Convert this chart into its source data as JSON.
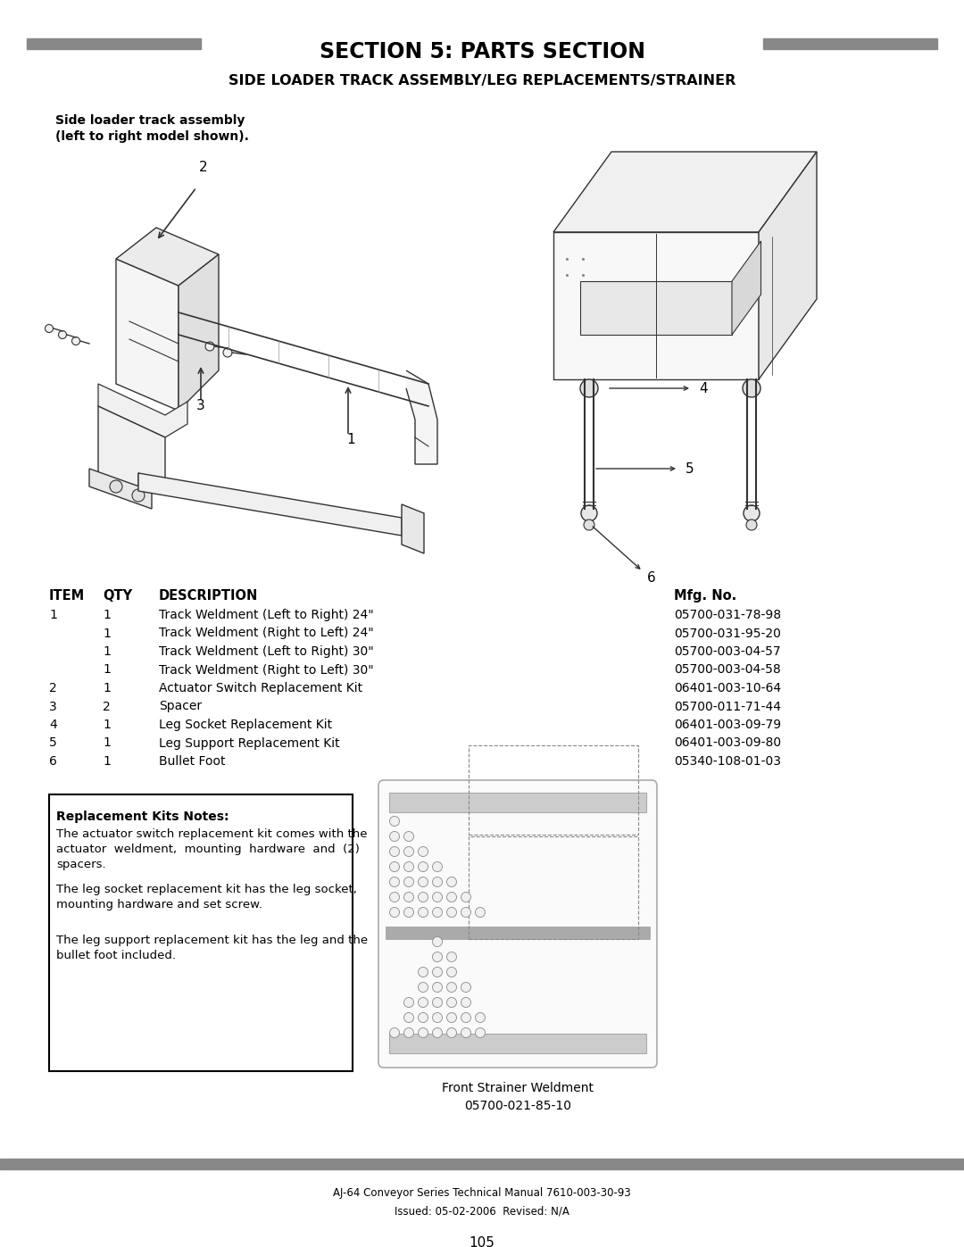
{
  "page_title": "SECTION 5: PARTS SECTION",
  "page_subtitle": "SIDE LOADER TRACK ASSEMBLY/LEG REPLACEMENTS/STRAINER",
  "diagram_caption_line1": "Side loader track assembly",
  "diagram_caption_line2": "(left to right model shown).",
  "table_headers": [
    "ITEM",
    "QTY",
    "DESCRIPTION",
    "Mfg. No."
  ],
  "table_rows": [
    [
      "1",
      "1",
      "Track Weldment (Left to Right) 24\"",
      "05700-031-78-98"
    ],
    [
      "",
      "1",
      "Track Weldment (Right to Left) 24\"",
      "05700-031-95-20"
    ],
    [
      "",
      "1",
      "Track Weldment (Left to Right) 30\"",
      "05700-003-04-57"
    ],
    [
      "",
      "1",
      "Track Weldment (Right to Left) 30\"",
      "05700-003-04-58"
    ],
    [
      "2",
      "1",
      "Actuator Switch Replacement Kit",
      "06401-003-10-64"
    ],
    [
      "3",
      "2",
      "Spacer",
      "05700-011-71-44"
    ],
    [
      "4",
      "1",
      "Leg Socket Replacement Kit",
      "06401-003-09-79"
    ],
    [
      "5",
      "1",
      "Leg Support Replacement Kit",
      "06401-003-09-80"
    ],
    [
      "6",
      "1",
      "Bullet Foot",
      "05340-108-01-03"
    ]
  ],
  "notes_title": "Replacement Kits Notes:",
  "notes_text1_line1": "The actuator switch replacement kit comes with the",
  "notes_text1_line2": "actuator  weldment,  mounting  hardware  and  (2)",
  "notes_text1_line3": "spacers.",
  "notes_text2_line1": "The leg socket replacement kit has the leg socket,",
  "notes_text2_line2": "mounting hardware and set screw.",
  "notes_text3_line1": "The leg support replacement kit has the leg and the",
  "notes_text3_line2": "bullet foot included.",
  "strainer_caption_line1": "Front Strainer Weldment",
  "strainer_caption_line2": "05700-021-85-10",
  "footer_line1": "AJ-64 Conveyor Series Technical Manual 7610-003-30-93",
  "footer_line2": "Issued: 05-02-2006  Revised: N/A",
  "page_number": "105",
  "bar_color": "#888888",
  "background_color": "#ffffff",
  "line_color": "#333333",
  "light_line_color": "#999999"
}
